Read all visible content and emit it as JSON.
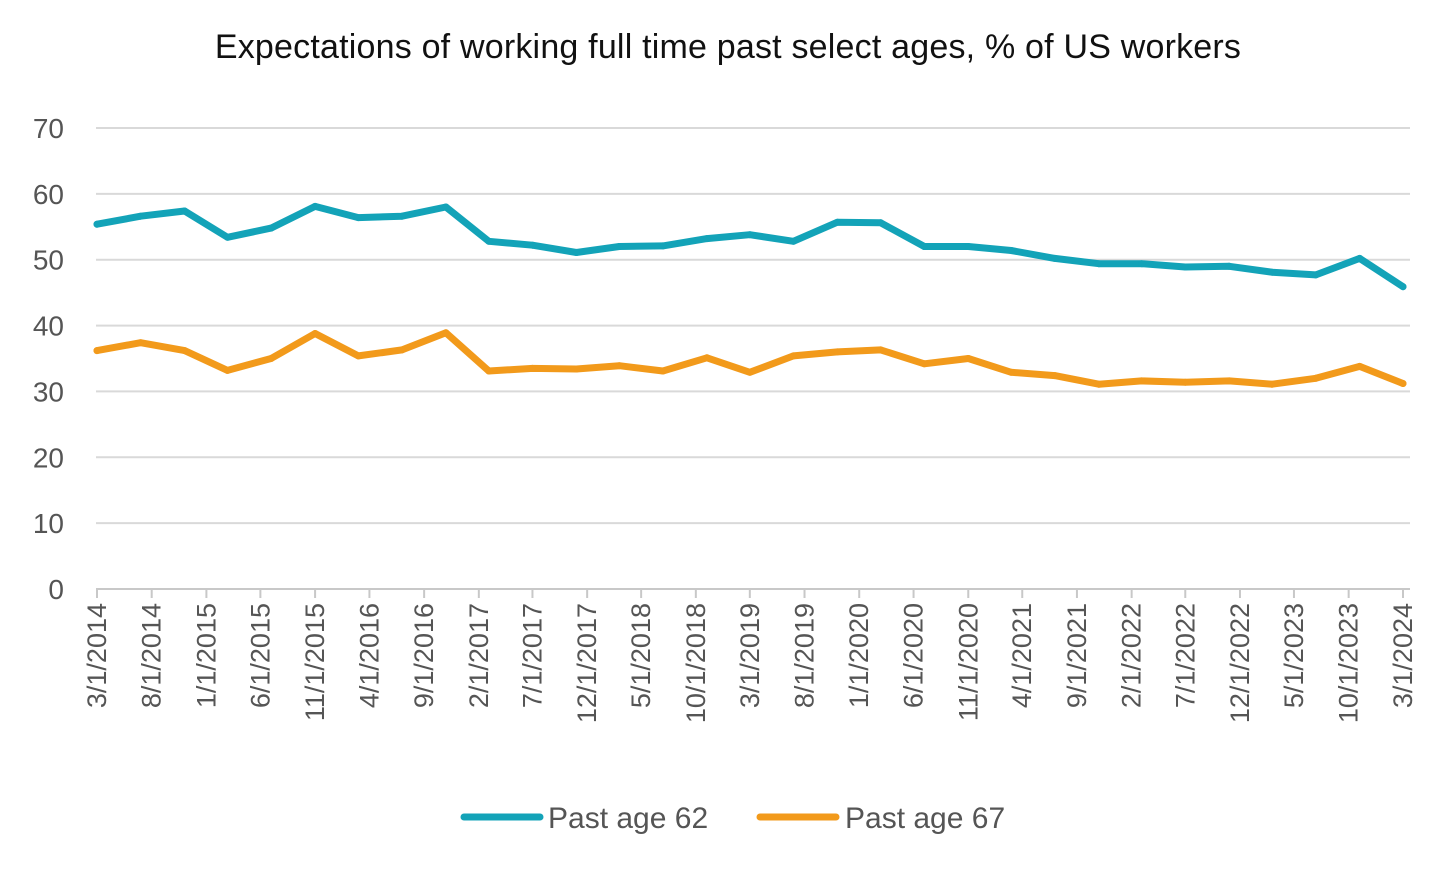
{
  "chart_data": {
    "type": "line",
    "title": "Expectations of working full time past select ages, % of US workers",
    "xlabel": "",
    "ylabel": "",
    "ylim": [
      0,
      70
    ],
    "yticks": [
      0,
      10,
      20,
      30,
      40,
      50,
      60,
      70
    ],
    "grid": true,
    "legend_position": "bottom",
    "x": [
      "3/1/2014",
      "8/1/2014",
      "1/1/2015",
      "6/1/2015",
      "11/1/2015",
      "4/1/2016",
      "9/1/2016",
      "2/1/2017",
      "7/1/2017",
      "12/1/2017",
      "5/1/2018",
      "10/1/2018",
      "3/1/2019",
      "8/1/2019",
      "1/1/2020",
      "6/1/2020",
      "11/1/2020",
      "4/1/2021",
      "9/1/2021",
      "2/1/2022",
      "7/1/2022",
      "12/1/2022",
      "5/1/2023",
      "10/1/2023",
      "3/1/2024"
    ],
    "series": [
      {
        "name": "Past age 62",
        "color": "#13A3B8",
        "points": [
          [
            "3/1/2014",
            55.4
          ],
          [
            "7/1/2014",
            56.6
          ],
          [
            "11/1/2014",
            57.4
          ],
          [
            "3/1/2015",
            53.4
          ],
          [
            "7/1/2015",
            54.8
          ],
          [
            "11/1/2015",
            58.1
          ],
          [
            "3/1/2016",
            56.4
          ],
          [
            "7/1/2016",
            56.6
          ],
          [
            "11/1/2016",
            58.0
          ],
          [
            "3/1/2017",
            52.8
          ],
          [
            "7/1/2017",
            52.2
          ],
          [
            "11/1/2017",
            51.1
          ],
          [
            "3/1/2018",
            52.0
          ],
          [
            "7/1/2018",
            52.1
          ],
          [
            "11/1/2018",
            53.2
          ],
          [
            "3/1/2019",
            53.8
          ],
          [
            "7/1/2019",
            52.8
          ],
          [
            "11/1/2019",
            55.7
          ],
          [
            "3/1/2020",
            55.6
          ],
          [
            "7/1/2020",
            52.0
          ],
          [
            "11/1/2020",
            52.0
          ],
          [
            "3/1/2021",
            51.4
          ],
          [
            "7/1/2021",
            50.2
          ],
          [
            "11/1/2021",
            49.4
          ],
          [
            "3/1/2022",
            49.4
          ],
          [
            "7/1/2022",
            48.9
          ],
          [
            "11/1/2022",
            49.0
          ],
          [
            "3/1/2023",
            48.1
          ],
          [
            "7/1/2023",
            47.7
          ],
          [
            "11/1/2023",
            50.2
          ],
          [
            "3/1/2024",
            45.9
          ]
        ]
      },
      {
        "name": "Past age 67",
        "color": "#F29A1B",
        "points": [
          [
            "3/1/2014",
            36.2
          ],
          [
            "7/1/2014",
            37.4
          ],
          [
            "11/1/2014",
            36.2
          ],
          [
            "3/1/2015",
            33.2
          ],
          [
            "7/1/2015",
            35.0
          ],
          [
            "11/1/2015",
            38.8
          ],
          [
            "3/1/2016",
            35.4
          ],
          [
            "7/1/2016",
            36.3
          ],
          [
            "11/1/2016",
            38.9
          ],
          [
            "3/1/2017",
            33.1
          ],
          [
            "7/1/2017",
            33.5
          ],
          [
            "11/1/2017",
            33.4
          ],
          [
            "3/1/2018",
            33.9
          ],
          [
            "7/1/2018",
            33.1
          ],
          [
            "11/1/2018",
            35.1
          ],
          [
            "3/1/2019",
            32.9
          ],
          [
            "7/1/2019",
            35.4
          ],
          [
            "11/1/2019",
            36.0
          ],
          [
            "3/1/2020",
            36.3
          ],
          [
            "7/1/2020",
            34.2
          ],
          [
            "11/1/2020",
            35.0
          ],
          [
            "3/1/2021",
            32.9
          ],
          [
            "7/1/2021",
            32.4
          ],
          [
            "11/1/2021",
            31.1
          ],
          [
            "3/1/2022",
            31.6
          ],
          [
            "7/1/2022",
            31.4
          ],
          [
            "11/1/2022",
            31.6
          ],
          [
            "3/1/2023",
            31.1
          ],
          [
            "7/1/2023",
            32.0
          ],
          [
            "11/1/2023",
            33.8
          ],
          [
            "3/1/2024",
            31.2
          ]
        ]
      }
    ]
  }
}
